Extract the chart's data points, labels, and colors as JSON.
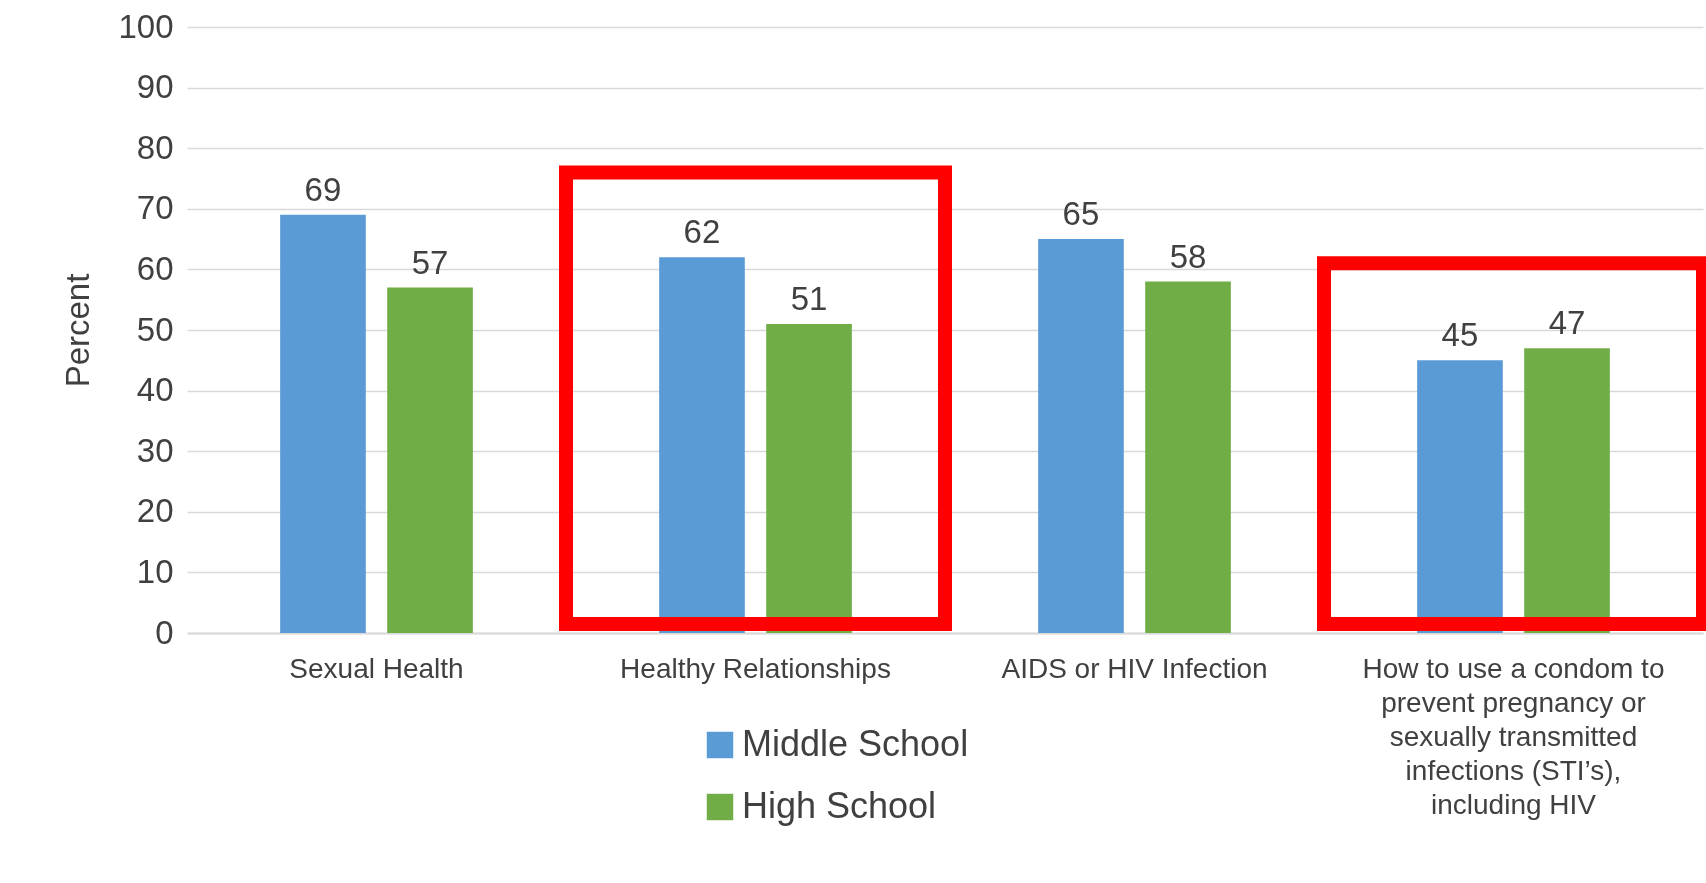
{
  "chart_data": {
    "type": "bar",
    "ylabel": "Percent",
    "categories": [
      "Sexual Health",
      "Healthy Relationships",
      "AIDS or HIV Infection",
      "How to use a condom to prevent pregnancy or sexually transmitted infections (STI’s), including HIV"
    ],
    "series": [
      {
        "name": "Middle School",
        "color": "#5b9bd5",
        "values": [
          69,
          62,
          65,
          45
        ]
      },
      {
        "name": "High School",
        "color": "#70ad47",
        "values": [
          57,
          51,
          58,
          47
        ]
      }
    ],
    "ylim": [
      0,
      100
    ],
    "yticks": [
      0,
      10,
      20,
      30,
      40,
      50,
      60,
      70,
      80,
      90,
      100
    ],
    "grid": "y",
    "legend": "bottom",
    "data_labels": true
  }
}
